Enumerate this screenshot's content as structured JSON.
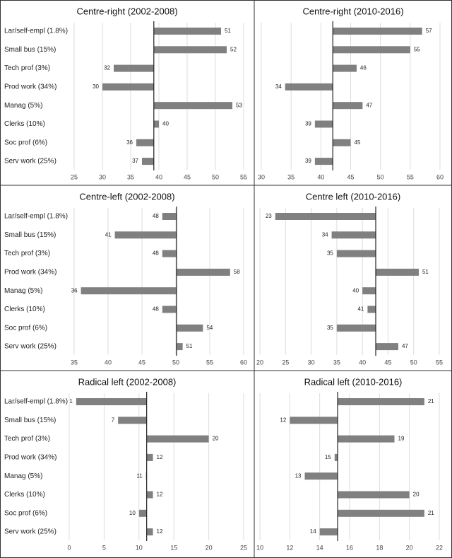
{
  "chart_data": [
    {
      "type": "bar",
      "title": "Centre-right (2002-2008)",
      "categories": [
        "Lar/self-empl (1.8%)",
        "Small bus (15%)",
        "Tech prof (3%)",
        "Prod work (34%)",
        "Manag (5%)",
        "Clerks (10%)",
        "Soc prof (6%)",
        "Serv work (25%)"
      ],
      "values": [
        51,
        52,
        32,
        30,
        53,
        40,
        36,
        37
      ],
      "reference_line": 39.1,
      "xlim": [
        25,
        55
      ],
      "xticks": [
        25,
        30,
        35,
        40,
        45,
        50,
        55
      ],
      "color": "#808080",
      "grid": true
    },
    {
      "type": "bar",
      "title": "Centre-right (2010-2016)",
      "values": [
        57,
        55,
        46,
        34,
        47,
        39,
        45,
        39
      ],
      "reference_line": 42,
      "xlim": [
        30,
        60
      ],
      "xticks": [
        30,
        35,
        40,
        45,
        50,
        55,
        60
      ],
      "color": "#808080",
      "grid": true
    },
    {
      "type": "bar",
      "title": "Centre-left (2002-2008)",
      "categories": [
        "Lar/self-empl (1.8%)",
        "Small bus (15%)",
        "Tech prof (3%)",
        "Prod work (34%)",
        "Manag (5%)",
        "Clerks (10%)",
        "Soc prof (6%)",
        "Serv work (25%)"
      ],
      "values": [
        48,
        41,
        48,
        58,
        36,
        48,
        54,
        51
      ],
      "reference_line": 50.1,
      "xlim": [
        35,
        60
      ],
      "xticks": [
        35,
        40,
        45,
        50,
        55,
        60
      ],
      "color": "#808080",
      "grid": true
    },
    {
      "type": "bar",
      "title": "Centre left (2010-2016)",
      "values": [
        23,
        34,
        35,
        51,
        40,
        41,
        35,
        47
      ],
      "reference_line": 42.6,
      "xlim": [
        20,
        55
      ],
      "xticks": [
        20,
        25,
        30,
        35,
        40,
        45,
        50,
        55
      ],
      "color": "#808080",
      "grid": true
    },
    {
      "type": "bar",
      "title": "Radical left (2002-2008)",
      "categories": [
        "Lar/self-empl (1.8%)",
        "Small bus (15%)",
        "Tech prof (3%)",
        "Prod work (34%)",
        "Manag (5%)",
        "Clerks (10%)",
        "Soc prof (6%)",
        "Serv work (25%)"
      ],
      "values": [
        1,
        7,
        20,
        12,
        11,
        12,
        10,
        12
      ],
      "reference_line": 11.1,
      "xlim": [
        0,
        25
      ],
      "xticks": [
        0,
        5,
        10,
        15,
        20,
        25
      ],
      "color": "#808080",
      "grid": true
    },
    {
      "type": "bar",
      "title": "Radical left (2010-2016)",
      "values": [
        21,
        12,
        19,
        15,
        13,
        20,
        21,
        14
      ],
      "reference_line": 15.2,
      "xlim": [
        10,
        22
      ],
      "xticks": [
        10,
        12,
        14,
        16,
        18,
        20,
        22
      ],
      "color": "#808080",
      "grid": true
    }
  ]
}
